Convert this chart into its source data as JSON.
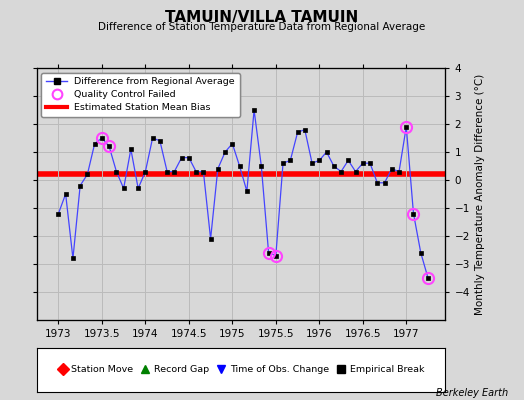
{
  "title": "TAMUIN/VILLA TAMUIN",
  "subtitle": "Difference of Station Temperature Data from Regional Average",
  "ylabel": "Monthly Temperature Anomaly Difference (°C)",
  "xlabel_ticks": [
    1973,
    1973.5,
    1974,
    1974.5,
    1975,
    1975.5,
    1976,
    1976.5,
    1977
  ],
  "xlabel_labels": [
    "1973",
    "1973.5",
    "1974",
    "1974.5",
    "1975",
    "1975.5",
    "1976",
    "1976.5",
    "1977"
  ],
  "ylim": [
    -5,
    4
  ],
  "xlim": [
    1972.75,
    1977.45
  ],
  "bias_value": 0.2,
  "background_color": "#d8d8d8",
  "plot_background": "#d8d8d8",
  "line_color": "#4444ff",
  "marker_color": "#000000",
  "bias_color": "#ff0000",
  "qc_fail_color": "#ff44ff",
  "watermark": "Berkeley Earth",
  "times": [
    1973.0,
    1973.083,
    1973.167,
    1973.25,
    1973.333,
    1973.417,
    1973.5,
    1973.583,
    1973.667,
    1973.75,
    1973.833,
    1973.917,
    1974.0,
    1974.083,
    1974.167,
    1974.25,
    1974.333,
    1974.417,
    1974.5,
    1974.583,
    1974.667,
    1974.75,
    1974.833,
    1974.917,
    1975.0,
    1975.083,
    1975.167,
    1975.25,
    1975.333,
    1975.417,
    1975.5,
    1975.583,
    1975.667,
    1975.75,
    1975.833,
    1975.917,
    1976.0,
    1976.083,
    1976.167,
    1976.25,
    1976.333,
    1976.417,
    1976.5,
    1976.583,
    1976.667,
    1976.75,
    1976.833,
    1976.917,
    1977.0,
    1977.083,
    1977.167,
    1977.25
  ],
  "values": [
    -1.2,
    -0.5,
    -2.8,
    -0.2,
    0.2,
    1.3,
    1.5,
    1.2,
    0.3,
    -0.3,
    1.1,
    -0.3,
    0.3,
    1.5,
    1.4,
    0.3,
    0.3,
    0.8,
    0.8,
    0.3,
    0.3,
    -2.1,
    0.4,
    1.0,
    1.3,
    0.5,
    -0.4,
    2.5,
    0.5,
    -2.6,
    -2.7,
    0.6,
    0.7,
    1.7,
    1.8,
    0.6,
    0.7,
    1.0,
    0.5,
    0.3,
    0.7,
    0.3,
    0.6,
    0.6,
    -0.1,
    -0.1,
    0.4,
    0.3,
    1.9,
    -1.2,
    -2.6,
    -3.5
  ],
  "qc_fail_indices": [
    6,
    7,
    29,
    30,
    48,
    49,
    51
  ],
  "grid_color": "#bbbbbb",
  "yticks": [
    -4,
    -3,
    -2,
    -1,
    0,
    1,
    2,
    3,
    4
  ]
}
